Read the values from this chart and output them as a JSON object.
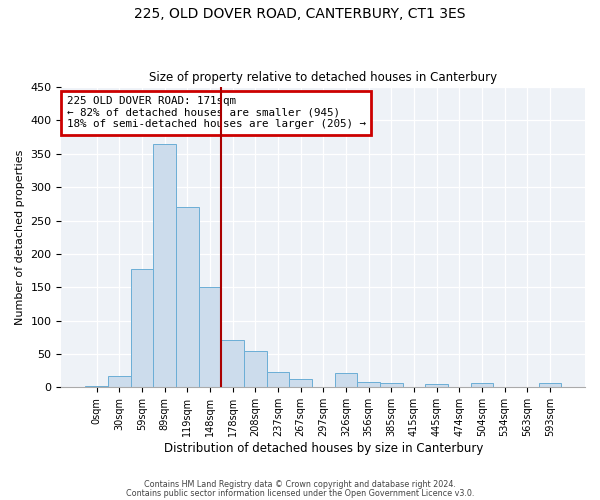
{
  "title": "225, OLD DOVER ROAD, CANTERBURY, CT1 3ES",
  "subtitle": "Size of property relative to detached houses in Canterbury",
  "xlabel": "Distribution of detached houses by size in Canterbury",
  "ylabel": "Number of detached properties",
  "bar_labels": [
    "0sqm",
    "30sqm",
    "59sqm",
    "89sqm",
    "119sqm",
    "148sqm",
    "178sqm",
    "208sqm",
    "237sqm",
    "267sqm",
    "297sqm",
    "326sqm",
    "356sqm",
    "385sqm",
    "415sqm",
    "445sqm",
    "474sqm",
    "504sqm",
    "534sqm",
    "563sqm",
    "593sqm"
  ],
  "bar_values": [
    2,
    17,
    177,
    365,
    270,
    150,
    71,
    54,
    23,
    12,
    0,
    21,
    8,
    6,
    0,
    5,
    0,
    6,
    0,
    0,
    6
  ],
  "bar_color": "#ccdcec",
  "bar_edge_color": "#6baed6",
  "vline_x": 6.0,
  "vline_color": "#aa0000",
  "ylim": [
    0,
    450
  ],
  "yticks": [
    0,
    50,
    100,
    150,
    200,
    250,
    300,
    350,
    400,
    450
  ],
  "annotation_title": "225 OLD DOVER ROAD: 171sqm",
  "annotation_line1": "← 82% of detached houses are smaller (945)",
  "annotation_line2": "18% of semi-detached houses are larger (205) →",
  "annotation_box_color": "#cc0000",
  "footer1": "Contains HM Land Registry data © Crown copyright and database right 2024.",
  "footer2": "Contains public sector information licensed under the Open Government Licence v3.0.",
  "bg_color": "#eef2f7"
}
